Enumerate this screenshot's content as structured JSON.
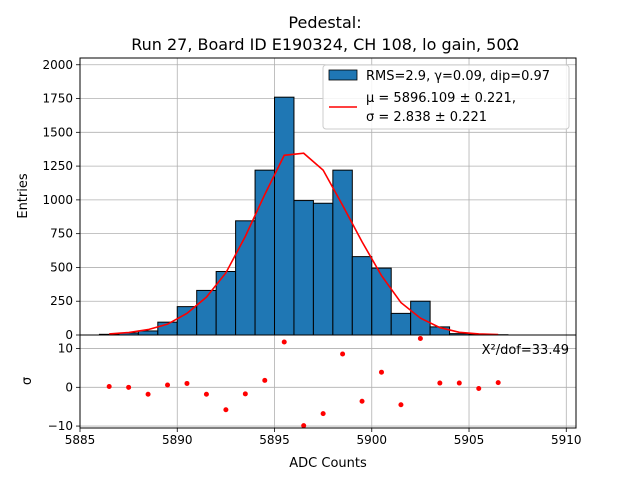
{
  "chart_data": {
    "type": "bar",
    "title_line1": "Pedestal:",
    "title_line2": "Run 27, Board ID E190324, CH 108, lo gain, 50Ω",
    "xlabel": "ADC Counts",
    "ylabel_top": "Entries",
    "ylabel_bottom": "σ",
    "xlim": [
      5885,
      5910.5
    ],
    "ylim_top": [
      0,
      2050
    ],
    "ylim_bottom": [
      -10.5,
      13.5
    ],
    "x_ticks": [
      "5885",
      "5890",
      "5895",
      "5900",
      "5905",
      "5910"
    ],
    "y_ticks_top": [
      "0",
      "250",
      "500",
      "750",
      "1000",
      "1250",
      "1500",
      "1750",
      "2000"
    ],
    "y_ticks_bottom": [
      "−10",
      "0",
      "10"
    ],
    "grid": true,
    "legend_position": "top-right",
    "legend": {
      "hist_label": "RMS=2.9, γ=0.09, dip=0.97",
      "fit_label_line1": "μ = 5896.109 ± 0.221,",
      "fit_label_line2": "σ = 2.838 ± 0.221"
    },
    "chi2_annotation": "X²/dof=33.49",
    "colors": {
      "bar": "#1f77b4",
      "fit": "#ff0000",
      "residual": "#ff0000",
      "grid": "#b0b0b0"
    },
    "series": [
      {
        "name": "histogram",
        "bin_edges": [
          5886,
          5887,
          5888,
          5889,
          5890,
          5891,
          5892,
          5893,
          5894,
          5895,
          5896,
          5897,
          5898,
          5899,
          5900,
          5901,
          5902,
          5903,
          5904,
          5905,
          5906,
          5907
        ],
        "values": [
          5,
          15,
          30,
          95,
          210,
          330,
          470,
          845,
          1220,
          1760,
          995,
          975,
          1220,
          580,
          495,
          160,
          250,
          60,
          10,
          5,
          2
        ]
      },
      {
        "name": "gaussian_fit",
        "x": [
          5886.5,
          5887.5,
          5888.5,
          5889.5,
          5890.5,
          5891.5,
          5892.5,
          5893.5,
          5894.5,
          5895.5,
          5896.5,
          5897.5,
          5898.5,
          5899.5,
          5900.5,
          5901.5,
          5902.5,
          5903.5,
          5904.5,
          5905.5,
          5906.5
        ],
        "values": [
          8,
          18,
          40,
          80,
          160,
          280,
          460,
          730,
          1040,
          1330,
          1345,
          1220,
          960,
          690,
          440,
          240,
          125,
          55,
          20,
          8,
          3
        ]
      },
      {
        "name": "residuals",
        "x": [
          5886.5,
          5887.5,
          5888.5,
          5889.5,
          5890.5,
          5891.5,
          5892.5,
          5893.5,
          5894.5,
          5895.5,
          5896.5,
          5897.5,
          5898.5,
          5899.5,
          5900.5,
          5901.5,
          5902.5,
          5903.5,
          5904.5,
          5905.5,
          5906.5
        ],
        "values": [
          0.2,
          0,
          -1.8,
          0.6,
          1,
          -1.8,
          -5.8,
          -1.7,
          1.8,
          11.7,
          -9.9,
          -6.8,
          8.6,
          -3.6,
          3.9,
          -4.5,
          12.6,
          1.1,
          1.1,
          -0.3,
          1.2
        ]
      }
    ]
  }
}
